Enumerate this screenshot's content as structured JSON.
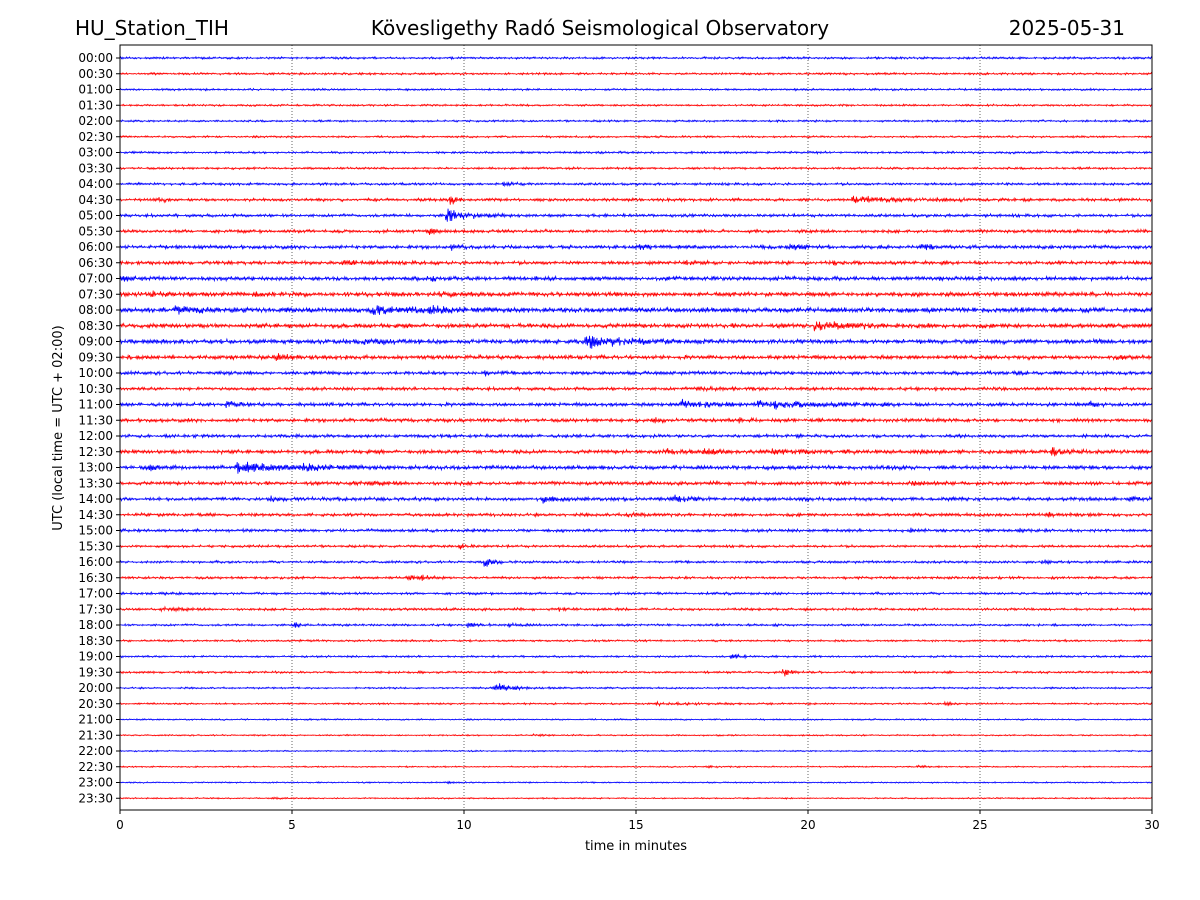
{
  "header": {
    "station": "HU_Station_TIH",
    "observatory": "Kövesligethy Radó Seismological Observatory",
    "date": "2025-05-31"
  },
  "chart_data": {
    "type": "line",
    "title": "Kövesligethy Radó Seismological Observatory",
    "xlabel": "time in minutes",
    "ylabel": "UTC (local time = UTC + 02:00)",
    "xlim": [
      0,
      30
    ],
    "x_ticks": [
      "0",
      "5",
      "10",
      "15",
      "20",
      "25",
      "30"
    ],
    "grid": "vertical dotted",
    "trace_colors": [
      "#0000ff",
      "#ff0000"
    ],
    "rows": [
      {
        "label": "00:00",
        "noise": 0.22,
        "events": []
      },
      {
        "label": "00:30",
        "noise": 0.22,
        "events": []
      },
      {
        "label": "01:00",
        "noise": 0.2,
        "events": []
      },
      {
        "label": "01:30",
        "noise": 0.2,
        "events": []
      },
      {
        "label": "02:00",
        "noise": 0.2,
        "events": []
      },
      {
        "label": "02:30",
        "noise": 0.2,
        "events": []
      },
      {
        "label": "03:00",
        "noise": 0.22,
        "events": []
      },
      {
        "label": "03:30",
        "noise": 0.22,
        "events": []
      },
      {
        "label": "04:00",
        "noise": 0.25,
        "events": [
          {
            "t": 11.2,
            "amp": 0.5,
            "dur": 0.3
          }
        ]
      },
      {
        "label": "04:30",
        "noise": 0.3,
        "events": [
          {
            "t": 1.1,
            "amp": 0.6,
            "dur": 0.2
          },
          {
            "t": 9.6,
            "amp": 1.3,
            "dur": 0.2
          },
          {
            "t": 21.3,
            "amp": 0.7,
            "dur": 1.5
          }
        ]
      },
      {
        "label": "05:00",
        "noise": 0.3,
        "events": [
          {
            "t": 9.5,
            "amp": 1.8,
            "dur": 0.6
          }
        ]
      },
      {
        "label": "05:30",
        "noise": 0.32,
        "events": [
          {
            "t": 9.0,
            "amp": 0.9,
            "dur": 0.3
          }
        ]
      },
      {
        "label": "06:00",
        "noise": 0.35,
        "events": [
          {
            "t": 9.6,
            "amp": 0.8,
            "dur": 0.3
          },
          {
            "t": 15.0,
            "amp": 0.5,
            "dur": 0.6
          },
          {
            "t": 19.5,
            "amp": 0.9,
            "dur": 0.4
          },
          {
            "t": 23.3,
            "amp": 0.8,
            "dur": 0.3
          }
        ]
      },
      {
        "label": "06:30",
        "noise": 0.35,
        "events": [
          {
            "t": 6.5,
            "amp": 0.5,
            "dur": 0.8
          },
          {
            "t": 16.5,
            "amp": 0.5,
            "dur": 0.3
          },
          {
            "t": 20.5,
            "amp": 0.5,
            "dur": 0.5
          }
        ]
      },
      {
        "label": "07:00",
        "noise": 0.4,
        "events": [
          {
            "t": 0.1,
            "amp": 0.7,
            "dur": 0.2
          },
          {
            "t": 9.0,
            "amp": 0.6,
            "dur": 0.2
          }
        ]
      },
      {
        "label": "07:30",
        "noise": 0.45,
        "events": [
          {
            "t": 0.9,
            "amp": 0.8,
            "dur": 0.2
          },
          {
            "t": 3.8,
            "amp": 0.6,
            "dur": 0.2
          },
          {
            "t": 9.3,
            "amp": 0.6,
            "dur": 0.3
          }
        ]
      },
      {
        "label": "08:00",
        "noise": 0.5,
        "events": [
          {
            "t": 1.6,
            "amp": 0.9,
            "dur": 0.6
          },
          {
            "t": 7.3,
            "amp": 1.2,
            "dur": 1.0
          },
          {
            "t": 9.0,
            "amp": 1.1,
            "dur": 0.5
          }
        ]
      },
      {
        "label": "08:30",
        "noise": 0.45,
        "events": [
          {
            "t": 20.2,
            "amp": 1.0,
            "dur": 1.2
          }
        ]
      },
      {
        "label": "09:00",
        "noise": 0.45,
        "events": [
          {
            "t": 7.0,
            "amp": 0.7,
            "dur": 0.8
          },
          {
            "t": 13.5,
            "amp": 1.5,
            "dur": 1.2
          }
        ]
      },
      {
        "label": "09:30",
        "noise": 0.4,
        "events": [
          {
            "t": 4.5,
            "amp": 0.8,
            "dur": 0.5
          },
          {
            "t": 29.0,
            "amp": 0.5,
            "dur": 0.2
          }
        ]
      },
      {
        "label": "10:00",
        "noise": 0.35,
        "events": [
          {
            "t": 10.6,
            "amp": 0.7,
            "dur": 0.2
          },
          {
            "t": 26.0,
            "amp": 0.6,
            "dur": 0.2
          }
        ]
      },
      {
        "label": "10:30",
        "noise": 0.32,
        "events": [
          {
            "t": 16.8,
            "amp": 0.5,
            "dur": 0.5
          }
        ]
      },
      {
        "label": "11:00",
        "noise": 0.35,
        "events": [
          {
            "t": 3.1,
            "amp": 0.8,
            "dur": 0.3
          },
          {
            "t": 16.3,
            "amp": 1.2,
            "dur": 0.8
          },
          {
            "t": 18.5,
            "amp": 1.2,
            "dur": 1.5
          },
          {
            "t": 28.2,
            "amp": 0.7,
            "dur": 0.2
          }
        ]
      },
      {
        "label": "11:30",
        "noise": 0.35,
        "events": [
          {
            "t": 15.5,
            "amp": 0.6,
            "dur": 0.2
          },
          {
            "t": 18.0,
            "amp": 0.6,
            "dur": 0.3
          }
        ]
      },
      {
        "label": "12:00",
        "noise": 0.32,
        "events": []
      },
      {
        "label": "12:30",
        "noise": 0.38,
        "events": [
          {
            "t": 15.9,
            "amp": 0.9,
            "dur": 0.3
          },
          {
            "t": 17.0,
            "amp": 0.9,
            "dur": 0.3
          },
          {
            "t": 19.0,
            "amp": 0.7,
            "dur": 1.2
          },
          {
            "t": 27.1,
            "amp": 1.2,
            "dur": 0.3
          }
        ]
      },
      {
        "label": "13:00",
        "noise": 0.4,
        "events": [
          {
            "t": 0.9,
            "amp": 0.7,
            "dur": 0.2
          },
          {
            "t": 3.4,
            "amp": 1.5,
            "dur": 1.3
          },
          {
            "t": 5.3,
            "amp": 0.9,
            "dur": 0.5
          },
          {
            "t": 22.5,
            "amp": 0.5,
            "dur": 0.2
          }
        ]
      },
      {
        "label": "13:30",
        "noise": 0.35,
        "events": [
          {
            "t": 6.8,
            "amp": 0.6,
            "dur": 0.6
          },
          {
            "t": 23.0,
            "amp": 0.7,
            "dur": 0.3
          }
        ]
      },
      {
        "label": "14:00",
        "noise": 0.35,
        "events": [
          {
            "t": 4.4,
            "amp": 0.7,
            "dur": 0.2
          },
          {
            "t": 12.3,
            "amp": 0.9,
            "dur": 0.4
          },
          {
            "t": 16.1,
            "amp": 0.8,
            "dur": 0.4
          },
          {
            "t": 29.4,
            "amp": 0.6,
            "dur": 0.3
          }
        ]
      },
      {
        "label": "14:30",
        "noise": 0.32,
        "events": [
          {
            "t": 14.8,
            "amp": 0.6,
            "dur": 0.3
          },
          {
            "t": 27.0,
            "amp": 0.6,
            "dur": 0.2
          }
        ]
      },
      {
        "label": "15:00",
        "noise": 0.3,
        "events": [
          {
            "t": 23.0,
            "amp": 0.6,
            "dur": 0.2
          },
          {
            "t": 26.1,
            "amp": 0.5,
            "dur": 0.2
          }
        ]
      },
      {
        "label": "15:30",
        "noise": 0.25,
        "events": [
          {
            "t": 9.9,
            "amp": 0.8,
            "dur": 0.2
          }
        ]
      },
      {
        "label": "16:00",
        "noise": 0.25,
        "events": [
          {
            "t": 10.6,
            "amp": 1.3,
            "dur": 0.2
          },
          {
            "t": 26.8,
            "amp": 0.5,
            "dur": 0.3
          }
        ]
      },
      {
        "label": "16:30",
        "noise": 0.25,
        "events": [
          {
            "t": 8.4,
            "amp": 0.8,
            "dur": 0.2
          },
          {
            "t": 8.8,
            "amp": 0.8,
            "dur": 0.2
          }
        ]
      },
      {
        "label": "17:00",
        "noise": 0.25,
        "events": []
      },
      {
        "label": "17:30",
        "noise": 0.25,
        "events": [
          {
            "t": 1.2,
            "amp": 0.7,
            "dur": 0.4
          },
          {
            "t": 12.8,
            "amp": 0.4,
            "dur": 0.2
          }
        ]
      },
      {
        "label": "18:00",
        "noise": 0.22,
        "events": [
          {
            "t": 5.1,
            "amp": 0.7,
            "dur": 0.2
          },
          {
            "t": 10.1,
            "amp": 0.6,
            "dur": 0.4
          },
          {
            "t": 11.3,
            "amp": 0.5,
            "dur": 0.3
          },
          {
            "t": 19.0,
            "amp": 0.4,
            "dur": 0.2
          }
        ]
      },
      {
        "label": "18:30",
        "noise": 0.2,
        "events": []
      },
      {
        "label": "19:00",
        "noise": 0.2,
        "events": [
          {
            "t": 17.8,
            "amp": 0.7,
            "dur": 0.3
          }
        ]
      },
      {
        "label": "19:30",
        "noise": 0.22,
        "events": [
          {
            "t": 19.3,
            "amp": 1.2,
            "dur": 0.2
          }
        ]
      },
      {
        "label": "20:00",
        "noise": 0.18,
        "events": [
          {
            "t": 10.9,
            "amp": 1.3,
            "dur": 0.6
          }
        ]
      },
      {
        "label": "20:30",
        "noise": 0.18,
        "events": [
          {
            "t": 15.5,
            "amp": 0.4,
            "dur": 1.5
          },
          {
            "t": 24.0,
            "amp": 0.4,
            "dur": 0.3
          }
        ]
      },
      {
        "label": "21:00",
        "noise": 0.15,
        "events": []
      },
      {
        "label": "21:30",
        "noise": 0.15,
        "events": [
          {
            "t": 12.0,
            "amp": 0.3,
            "dur": 0.3
          }
        ]
      },
      {
        "label": "22:00",
        "noise": 0.14,
        "events": []
      },
      {
        "label": "22:30",
        "noise": 0.14,
        "events": [
          {
            "t": 17.0,
            "amp": 0.3,
            "dur": 0.3
          },
          {
            "t": 23.2,
            "amp": 0.4,
            "dur": 0.2
          }
        ]
      },
      {
        "label": "23:00",
        "noise": 0.14,
        "events": [
          {
            "t": 9.5,
            "amp": 0.3,
            "dur": 0.2
          }
        ]
      },
      {
        "label": "23:30",
        "noise": 0.14,
        "events": [
          {
            "t": 4.5,
            "amp": 0.3,
            "dur": 0.2
          }
        ]
      }
    ]
  }
}
